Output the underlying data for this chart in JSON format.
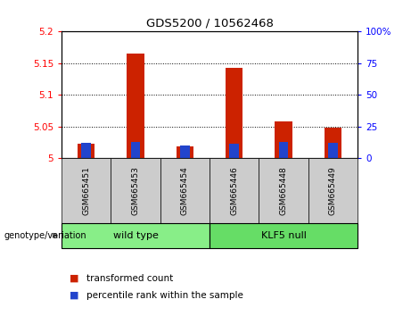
{
  "title": "GDS5200 / 10562468",
  "categories": [
    "GSM665451",
    "GSM665453",
    "GSM665454",
    "GSM665446",
    "GSM665448",
    "GSM665449"
  ],
  "red_values": [
    5.022,
    5.165,
    5.018,
    5.142,
    5.058,
    5.048
  ],
  "blue_values_pct": [
    12,
    13,
    10,
    11,
    13,
    12
  ],
  "ylim_left": [
    5.0,
    5.2
  ],
  "ylim_right": [
    0,
    100
  ],
  "yticks_left": [
    5.0,
    5.05,
    5.1,
    5.15,
    5.2
  ],
  "yticks_right": [
    0,
    25,
    50,
    75,
    100
  ],
  "ytick_labels_left": [
    "5",
    "5.05",
    "5.1",
    "5.15",
    "5.2"
  ],
  "ytick_labels_right": [
    "0",
    "25",
    "50",
    "75",
    "100%"
  ],
  "wild_type_label": "wild type",
  "klf5_label": "KLF5 null",
  "genotype_label": "genotype/variation",
  "legend_red": "transformed count",
  "legend_blue": "percentile rank within the sample",
  "red_color": "#cc2200",
  "blue_color": "#2244cc",
  "bar_width": 0.35,
  "base_value": 5.0,
  "wild_type_bg": "#88ee88",
  "klf5_bg": "#66dd66",
  "xticklabel_bg": "#cccccc"
}
